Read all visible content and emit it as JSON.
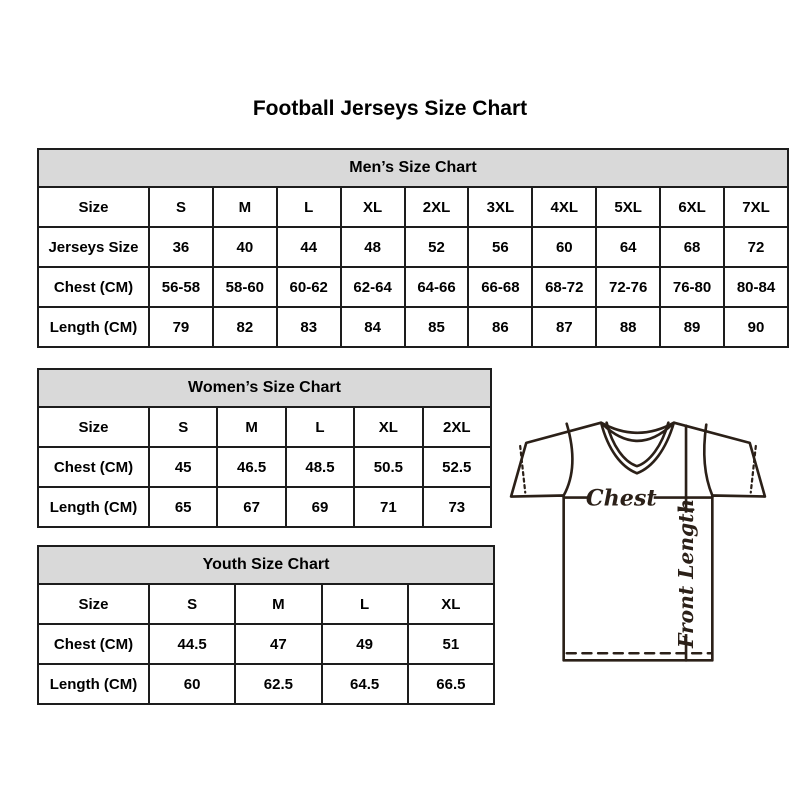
{
  "title": "Football Jerseys Size Chart",
  "tables": {
    "men": {
      "title": "Men’s Size Chart",
      "rows": [
        {
          "label": "Size",
          "values": [
            "S",
            "M",
            "L",
            "XL",
            "2XL",
            "3XL",
            "4XL",
            "5XL",
            "6XL",
            "7XL"
          ]
        },
        {
          "label": "Jerseys Size",
          "values": [
            "36",
            "40",
            "44",
            "48",
            "52",
            "56",
            "60",
            "64",
            "68",
            "72"
          ]
        },
        {
          "label": "Chest (CM)",
          "values": [
            "56-58",
            "58-60",
            "60-62",
            "62-64",
            "64-66",
            "66-68",
            "68-72",
            "72-76",
            "76-80",
            "80-84"
          ]
        },
        {
          "label": "Length (CM)",
          "values": [
            "79",
            "82",
            "83",
            "84",
            "85",
            "86",
            "87",
            "88",
            "89",
            "90"
          ]
        }
      ]
    },
    "women": {
      "title": "Women’s Size Chart",
      "rows": [
        {
          "label": "Size",
          "values": [
            "S",
            "M",
            "L",
            "XL",
            "2XL"
          ]
        },
        {
          "label": "Chest (CM)",
          "values": [
            "45",
            "46.5",
            "48.5",
            "50.5",
            "52.5"
          ]
        },
        {
          "label": "Length (CM)",
          "values": [
            "65",
            "67",
            "69",
            "71",
            "73"
          ]
        }
      ]
    },
    "youth": {
      "title": "Youth Size Chart",
      "rows": [
        {
          "label": "Size",
          "values": [
            "S",
            "M",
            "L",
            "XL"
          ]
        },
        {
          "label": "Chest (CM)",
          "values": [
            "44.5",
            "47",
            "49",
            "51"
          ]
        },
        {
          "label": "Length (CM)",
          "values": [
            "60",
            "62.5",
            "64.5",
            "66.5"
          ]
        }
      ]
    }
  },
  "diagram": {
    "chest_label": "Chest",
    "front_length_label": "Front Length"
  },
  "colors": {
    "header_bg": "#d9d9d9",
    "table_border": "#1d1d1d",
    "text": "#000000",
    "drawing_stroke": "#2b2018",
    "background": "#ffffff"
  }
}
